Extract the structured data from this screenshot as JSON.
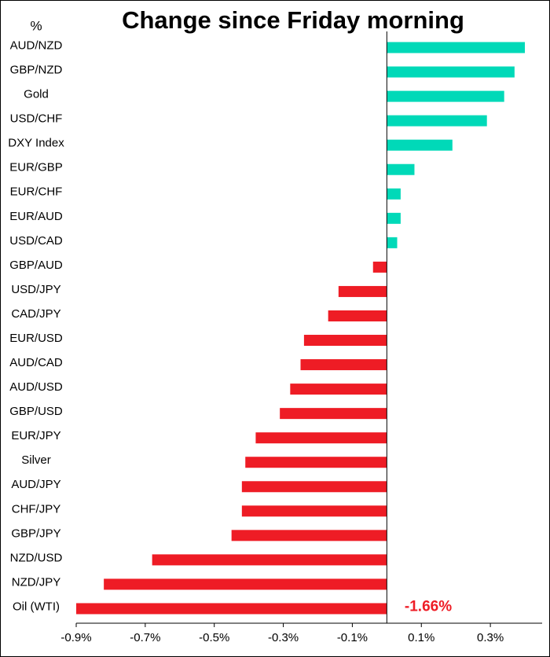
{
  "chart_data": {
    "type": "hbar",
    "title": "Change since Friday morning",
    "y_axis_label": "%",
    "categories": [
      "AUD/NZD",
      "GBP/NZD",
      "Gold",
      "USD/CHF",
      "DXY Index",
      "EUR/GBP",
      "EUR/CHF",
      "EUR/AUD",
      "USD/CAD",
      "GBP/AUD",
      "USD/JPY",
      "CAD/JPY",
      "EUR/USD",
      "AUD/CAD",
      "AUD/USD",
      "GBP/USD",
      "EUR/JPY",
      "Silver",
      "AUD/JPY",
      "CHF/JPY",
      "GBP/JPY",
      "NZD/USD",
      "NZD/JPY",
      "Oil (WTI)"
    ],
    "values": [
      0.4,
      0.37,
      0.34,
      0.29,
      0.19,
      0.08,
      0.04,
      0.04,
      0.03,
      -0.04,
      -0.14,
      -0.17,
      -0.24,
      -0.25,
      -0.28,
      -0.31,
      -0.38,
      -0.41,
      -0.42,
      -0.42,
      -0.45,
      -0.68,
      -0.82,
      -1.66
    ],
    "value_labels": [
      null,
      null,
      null,
      null,
      null,
      null,
      null,
      null,
      null,
      null,
      null,
      null,
      null,
      null,
      null,
      null,
      null,
      null,
      null,
      null,
      null,
      null,
      null,
      "-1.66%"
    ],
    "colors": {
      "positive": "#00d9b8",
      "negative": "#ee1c25"
    },
    "xlim": [
      -0.9,
      0.45
    ],
    "xticks": [
      {
        "value": -0.9,
        "label": "-0.9%"
      },
      {
        "value": -0.7,
        "label": "-0.7%"
      },
      {
        "value": -0.5,
        "label": "-0.5%"
      },
      {
        "value": -0.3,
        "label": "-0.3%"
      },
      {
        "value": -0.1,
        "label": "-0.1%"
      },
      {
        "value": 0.1,
        "label": "0.1%"
      },
      {
        "value": 0.3,
        "label": "0.3%"
      }
    ],
    "grid": false
  }
}
